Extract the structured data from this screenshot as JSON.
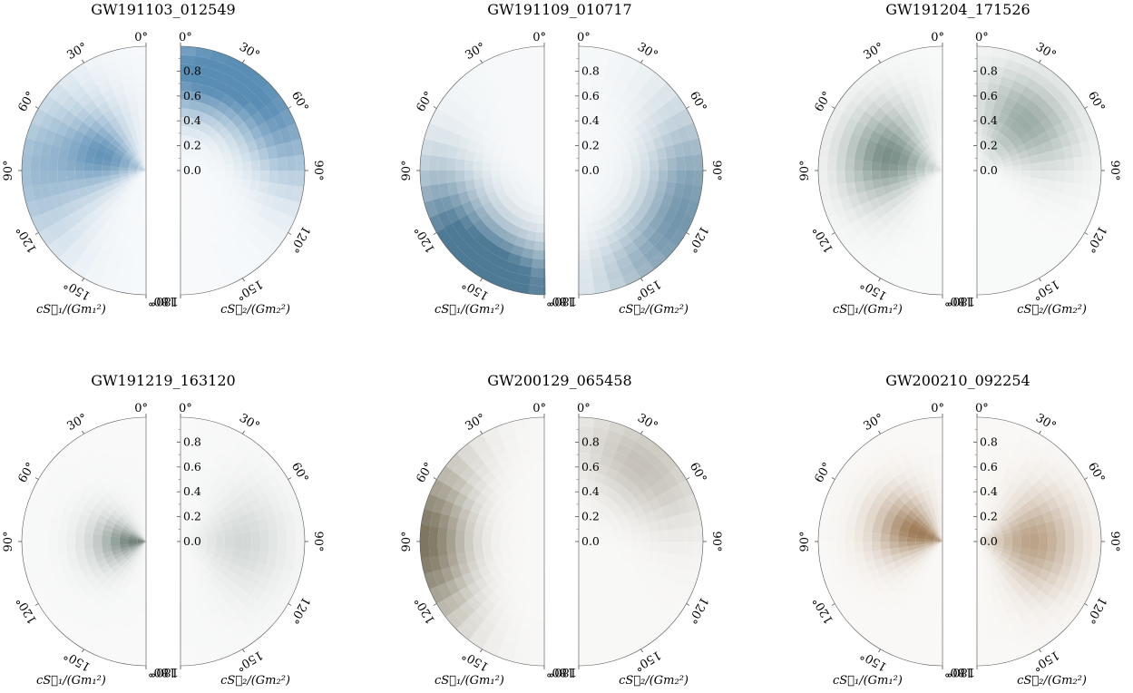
{
  "chart_data": [
    {
      "type": "heatmap",
      "title": "GW191103_012549",
      "left_label": "cS⃗₁/(Gm₁²)",
      "right_label": "cS⃗₂/(Gm₂²)",
      "angle_ticks": [
        "0°",
        "30°",
        "60°",
        "90°",
        "120°",
        "150°",
        "180°"
      ],
      "radial_ticks": [
        "0.0",
        "0.2",
        "0.4",
        "0.6",
        "0.8"
      ],
      "radial_range": [
        0,
        1
      ],
      "angle_range_deg": [
        0,
        180
      ],
      "colormap": [
        "#ffffff",
        "#5a8db4"
      ],
      "left_density": [
        {
          "theta": 70,
          "r": 0.35,
          "intensity": 0.85
        },
        {
          "theta": 90,
          "r": 0.9,
          "intensity": 0.5
        }
      ],
      "right_density": [
        {
          "theta": 10,
          "r": 0.8,
          "intensity": 0.9
        },
        {
          "theta": 60,
          "r": 0.9,
          "intensity": 0.7
        }
      ]
    },
    {
      "type": "heatmap",
      "title": "GW191109_010717",
      "left_label": "cS⃗₁/(Gm₁²)",
      "right_label": "cS⃗₂/(Gm₂²)",
      "angle_ticks": [
        "0°",
        "30°",
        "60°",
        "90°",
        "120°",
        "150°",
        "180°"
      ],
      "radial_ticks": [
        "0.0",
        "0.2",
        "0.4",
        "0.6",
        "0.8"
      ],
      "radial_range": [
        0,
        1
      ],
      "angle_range_deg": [
        0,
        180
      ],
      "colormap": [
        "#ffffff",
        "#4e7a96"
      ],
      "left_density": [
        {
          "theta": 160,
          "r": 0.95,
          "intensity": 0.95
        },
        {
          "theta": 120,
          "r": 0.85,
          "intensity": 0.6
        }
      ],
      "right_density": [
        {
          "theta": 130,
          "r": 0.9,
          "intensity": 0.55
        },
        {
          "theta": 90,
          "r": 0.9,
          "intensity": 0.4
        }
      ]
    },
    {
      "type": "heatmap",
      "title": "GW191204_171526",
      "left_label": "cS⃗₁/(Gm₁²)",
      "right_label": "cS⃗₂/(Gm₂²)",
      "angle_ticks": [
        "0°",
        "30°",
        "60°",
        "90°",
        "120°",
        "150°",
        "180°"
      ],
      "radial_ticks": [
        "0.0",
        "0.2",
        "0.4",
        "0.6",
        "0.8"
      ],
      "radial_range": [
        0,
        1
      ],
      "angle_range_deg": [
        0,
        180
      ],
      "colormap": [
        "#ffffff",
        "#7a8f88"
      ],
      "left_density": [
        {
          "theta": 75,
          "r": 0.45,
          "intensity": 0.95
        }
      ],
      "right_density": [
        {
          "theta": 45,
          "r": 0.55,
          "intensity": 0.7
        }
      ]
    },
    {
      "type": "heatmap",
      "title": "GW191219_163120",
      "left_label": "cS⃗₁/(Gm₁²)",
      "right_label": "cS⃗₂/(Gm₂²)",
      "angle_ticks": [
        "0°",
        "30°",
        "60°",
        "90°",
        "120°",
        "150°",
        "180°"
      ],
      "radial_ticks": [
        "0.0",
        "0.2",
        "0.4",
        "0.6",
        "0.8"
      ],
      "radial_range": [
        0,
        1
      ],
      "angle_range_deg": [
        0,
        180
      ],
      "colormap": [
        "#ffffff",
        "#6f7f78"
      ],
      "left_density": [
        {
          "theta": 90,
          "r": 0.05,
          "intensity": 0.95
        }
      ],
      "right_density": [
        {
          "theta": 90,
          "r": 0.5,
          "intensity": 0.25
        }
      ]
    },
    {
      "type": "heatmap",
      "title": "GW200129_065458",
      "left_label": "cS⃗₁/(Gm₁²)",
      "right_label": "cS⃗₂/(Gm₂²)",
      "angle_ticks": [
        "0°",
        "30°",
        "60°",
        "90°",
        "120°",
        "150°",
        "180°"
      ],
      "radial_ticks": [
        "0.0",
        "0.2",
        "0.4",
        "0.6",
        "0.8"
      ],
      "radial_range": [
        0,
        1
      ],
      "angle_range_deg": [
        0,
        180
      ],
      "colormap": [
        "#ffffff",
        "#7d7560"
      ],
      "left_density": [
        {
          "theta": 90,
          "r": 0.97,
          "intensity": 0.95
        }
      ],
      "right_density": [
        {
          "theta": 40,
          "r": 0.8,
          "intensity": 0.4
        }
      ]
    },
    {
      "type": "heatmap",
      "title": "GW200210_092254",
      "left_label": "cS⃗₁/(Gm₁²)",
      "right_label": "cS⃗₂/(Gm₂²)",
      "angle_ticks": [
        "0°",
        "30°",
        "60°",
        "90°",
        "120°",
        "150°",
        "180°"
      ],
      "radial_ticks": [
        "0.0",
        "0.2",
        "0.4",
        "0.6",
        "0.8"
      ],
      "radial_range": [
        0,
        1
      ],
      "angle_range_deg": [
        0,
        180
      ],
      "colormap": [
        "#ffffff",
        "#9c7a55"
      ],
      "left_density": [
        {
          "theta": 70,
          "r": 0.2,
          "intensity": 0.95
        }
      ],
      "right_density": [
        {
          "theta": 90,
          "r": 0.45,
          "intensity": 0.65
        }
      ]
    }
  ]
}
